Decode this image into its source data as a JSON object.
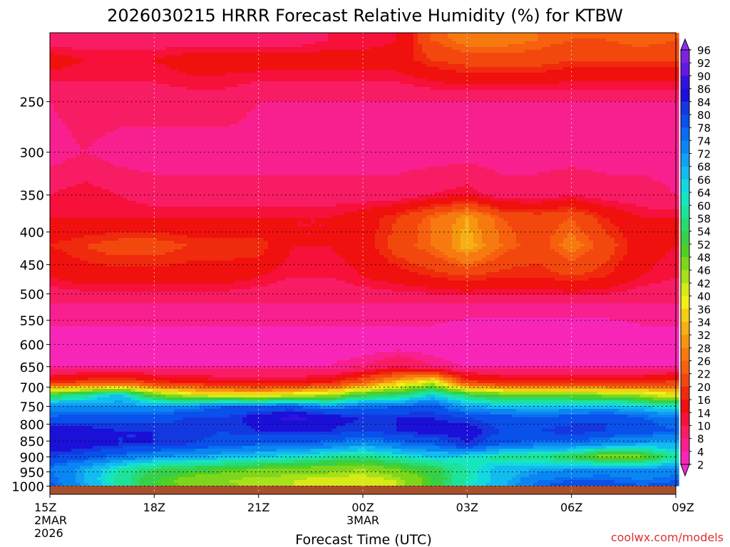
{
  "chart_data": {
    "type": "heatmap",
    "title": "2026030215 HRRR Forecast Relative Humidity (%) for KTBW",
    "xlabel": "Forecast Time (UTC)",
    "ylabel": "",
    "credit": "coolwx.com/models",
    "y_scale": "log-pressure",
    "ylim": [
      1030,
      195
    ],
    "y_ticks": [
      250,
      300,
      350,
      400,
      450,
      500,
      550,
      600,
      650,
      700,
      750,
      800,
      850,
      900,
      950,
      1000
    ],
    "x_ticks": [
      {
        "t": 0,
        "lines": [
          "15Z",
          "2MAR",
          "2026"
        ]
      },
      {
        "t": 3,
        "lines": [
          "18Z"
        ]
      },
      {
        "t": 6,
        "lines": [
          "21Z"
        ]
      },
      {
        "t": 9,
        "lines": [
          "00Z",
          "3MAR"
        ]
      },
      {
        "t": 12,
        "lines": [
          "03Z"
        ]
      },
      {
        "t": 15,
        "lines": [
          "06Z"
        ]
      },
      {
        "t": 18,
        "lines": [
          "09Z"
        ]
      }
    ],
    "times": [
      0,
      1,
      2,
      3,
      4,
      5,
      6,
      7,
      8,
      9,
      10,
      11,
      12,
      13,
      14,
      15,
      16,
      17,
      18
    ],
    "levels": [
      200,
      215,
      250,
      300,
      350,
      380,
      420,
      470,
      520,
      600,
      650,
      690,
      720,
      750,
      780,
      820,
      860,
      900,
      940,
      980,
      1010
    ],
    "rh": [
      [
        12,
        12,
        12,
        12,
        12,
        12,
        12,
        12,
        14,
        14,
        16,
        26,
        30,
        30,
        28,
        26,
        26,
        28,
        26
      ],
      [
        18,
        16,
        16,
        16,
        18,
        18,
        18,
        18,
        18,
        18,
        18,
        22,
        24,
        24,
        24,
        22,
        22,
        22,
        22
      ],
      [
        10,
        12,
        12,
        12,
        12,
        12,
        10,
        10,
        10,
        10,
        10,
        10,
        10,
        10,
        10,
        10,
        10,
        10,
        10
      ],
      [
        8,
        10,
        8,
        8,
        8,
        8,
        8,
        8,
        8,
        8,
        8,
        8,
        8,
        8,
        8,
        8,
        8,
        8,
        8
      ],
      [
        14,
        16,
        14,
        12,
        12,
        12,
        12,
        12,
        12,
        12,
        12,
        14,
        16,
        12,
        12,
        14,
        12,
        12,
        10
      ],
      [
        16,
        16,
        16,
        16,
        16,
        16,
        16,
        16,
        16,
        18,
        22,
        28,
        34,
        26,
        24,
        26,
        20,
        16,
        16
      ],
      [
        20,
        22,
        24,
        24,
        22,
        22,
        22,
        16,
        16,
        18,
        24,
        28,
        36,
        28,
        24,
        30,
        24,
        18,
        16
      ],
      [
        16,
        18,
        18,
        18,
        18,
        18,
        16,
        14,
        14,
        16,
        18,
        20,
        22,
        20,
        20,
        22,
        20,
        16,
        14
      ],
      [
        10,
        10,
        10,
        10,
        10,
        10,
        10,
        10,
        10,
        10,
        10,
        10,
        10,
        10,
        10,
        10,
        10,
        10,
        10
      ],
      [
        6,
        6,
        6,
        6,
        6,
        6,
        6,
        6,
        6,
        6,
        6,
        6,
        4,
        4,
        4,
        4,
        4,
        6,
        6
      ],
      [
        8,
        8,
        8,
        8,
        8,
        8,
        8,
        8,
        8,
        10,
        14,
        10,
        8,
        8,
        8,
        8,
        8,
        8,
        8
      ],
      [
        22,
        24,
        26,
        22,
        20,
        18,
        18,
        18,
        20,
        28,
        38,
        46,
        24,
        22,
        22,
        22,
        22,
        22,
        24
      ],
      [
        56,
        62,
        70,
        52,
        44,
        42,
        40,
        44,
        46,
        56,
        58,
        68,
        58,
        52,
        52,
        52,
        50,
        46,
        42
      ],
      [
        76,
        74,
        74,
        74,
        76,
        80,
        80,
        80,
        76,
        78,
        80,
        82,
        72,
        70,
        70,
        70,
        70,
        68,
        64
      ],
      [
        80,
        82,
        82,
        82,
        84,
        84,
        88,
        92,
        88,
        86,
        86,
        86,
        84,
        82,
        80,
        82,
        84,
        80,
        78
      ],
      [
        90,
        88,
        86,
        86,
        86,
        84,
        86,
        86,
        86,
        84,
        86,
        88,
        88,
        84,
        84,
        86,
        84,
        82,
        80
      ],
      [
        90,
        88,
        86,
        86,
        84,
        82,
        80,
        80,
        78,
        74,
        78,
        80,
        86,
        80,
        78,
        78,
        74,
        72,
        72
      ],
      [
        84,
        82,
        78,
        74,
        72,
        70,
        68,
        66,
        62,
        60,
        64,
        68,
        66,
        62,
        60,
        56,
        48,
        50,
        62
      ],
      [
        78,
        72,
        64,
        58,
        56,
        54,
        52,
        50,
        50,
        48,
        52,
        56,
        64,
        70,
        72,
        74,
        76,
        74,
        76
      ],
      [
        80,
        72,
        62,
        54,
        50,
        48,
        46,
        46,
        44,
        44,
        46,
        54,
        64,
        70,
        78,
        80,
        80,
        78,
        80
      ],
      [
        82,
        74,
        64,
        56,
        52,
        50,
        48,
        46,
        44,
        44,
        46,
        56,
        66,
        72,
        80,
        84,
        84,
        82,
        82
      ]
    ],
    "colorbar": {
      "labels": [
        96,
        92,
        90,
        86,
        84,
        80,
        78,
        74,
        72,
        68,
        66,
        64,
        60,
        58,
        54,
        52,
        48,
        46,
        42,
        40,
        36,
        34,
        32,
        28,
        26,
        22,
        20,
        16,
        14,
        10,
        8,
        4,
        2
      ],
      "colors": [
        "#7e22e0",
        "#6418e0",
        "#3212e0",
        "#1a10d8",
        "#1438e0",
        "#0a50ea",
        "#0a6cf0",
        "#0a86f2",
        "#12a0f2",
        "#12bcee",
        "#14d8e0",
        "#16e6c0",
        "#1ee29a",
        "#28da70",
        "#36d048",
        "#50d024",
        "#7ed61c",
        "#a8e01a",
        "#d6ea18",
        "#f4ee16",
        "#f6ce14",
        "#f6b014",
        "#f69610",
        "#f67a10",
        "#f6600e",
        "#f2480e",
        "#f02a0c",
        "#f0100e",
        "#f6103a",
        "#f81c64",
        "#f8208e",
        "#f826b8",
        "#f22ad8"
      ]
    },
    "ground_color": "#a8502c",
    "grid": true,
    "legend": "right"
  }
}
